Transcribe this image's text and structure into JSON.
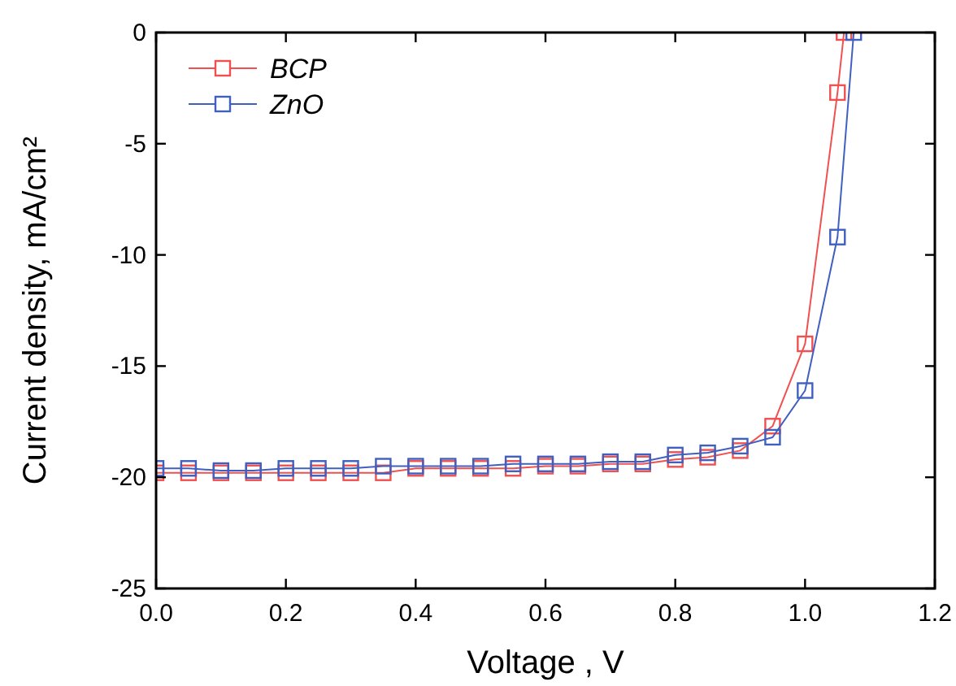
{
  "chart_data": {
    "type": "line",
    "xlabel": "Voltage , V",
    "ylabel": "Current density, mA/cm²",
    "marker": "square",
    "legend": "top left",
    "grid": false,
    "xlim": [
      0,
      1.2
    ],
    "ylim": [
      -25,
      0
    ],
    "xticks": [
      {
        "value": 0,
        "label": "0.0"
      },
      {
        "value": 0.2,
        "label": "0.2"
      },
      {
        "value": 0.4,
        "label": "0.4"
      },
      {
        "value": 0.6,
        "label": "0.6"
      },
      {
        "value": 0.8,
        "label": "0.8"
      },
      {
        "value": 1,
        "label": "1.0"
      },
      {
        "value": 1.2,
        "label": "1.2"
      }
    ],
    "yticks": [
      -25,
      -20,
      -15,
      -10,
      -5,
      0
    ],
    "series": [
      {
        "name": "BCP",
        "color": "#f05050",
        "x": [
          0,
          0.05,
          0.1,
          0.15,
          0.2,
          0.25,
          0.3,
          0.35,
          0.4,
          0.45,
          0.5,
          0.55,
          0.6,
          0.65,
          0.7,
          0.75,
          0.8,
          0.85,
          0.9,
          0.95,
          1.0,
          1.05,
          1.06
        ],
        "values": [
          -19.8,
          -19.8,
          -19.8,
          -19.8,
          -19.8,
          -19.8,
          -19.8,
          -19.8,
          -19.6,
          -19.6,
          -19.6,
          -19.6,
          -19.5,
          -19.5,
          -19.4,
          -19.4,
          -19.2,
          -19.1,
          -18.8,
          -17.7,
          -14.0,
          -2.7,
          0
        ]
      },
      {
        "name": "ZnO",
        "color": "#4060c0",
        "x": [
          0,
          0.05,
          0.1,
          0.15,
          0.2,
          0.25,
          0.3,
          0.35,
          0.4,
          0.45,
          0.5,
          0.55,
          0.6,
          0.65,
          0.7,
          0.75,
          0.8,
          0.85,
          0.9,
          0.95,
          1.0,
          1.05,
          1.075
        ],
        "values": [
          -19.6,
          -19.6,
          -19.7,
          -19.7,
          -19.6,
          -19.6,
          -19.6,
          -19.5,
          -19.5,
          -19.5,
          -19.5,
          -19.4,
          -19.4,
          -19.4,
          -19.3,
          -19.3,
          -19.0,
          -18.9,
          -18.6,
          -18.2,
          -16.1,
          -9.2,
          0
        ]
      }
    ]
  }
}
